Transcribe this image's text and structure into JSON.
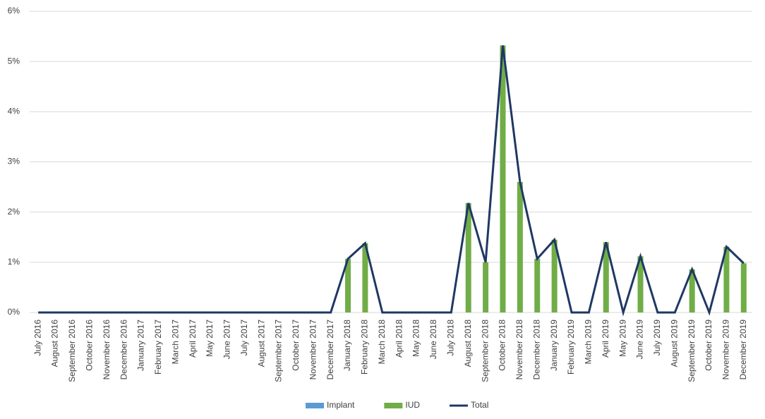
{
  "chart_data": {
    "type": "bar-line",
    "categories": [
      "July 2016",
      "August 2016",
      "September 2016",
      "October 2016",
      "November 2016",
      "December 2016",
      "January 2017",
      "February 2017",
      "March 2017",
      "April 2017",
      "May 2017",
      "June 2017",
      "July 2017",
      "August 2017",
      "September 2017",
      "October 2017",
      "November 2017",
      "December 2017",
      "January 2018",
      "February 2018",
      "March 2018",
      "April 2018",
      "May 2018",
      "June 2018",
      "July 2018",
      "August 2018",
      "September 2018",
      "October 2018",
      "November 2018",
      "December 2018",
      "January 2019",
      "February 2019",
      "March 2019",
      "April 2019",
      "May 2019",
      "June 2019",
      "July 2019",
      "August 2019",
      "September 2019",
      "October 2019",
      "November 2019",
      "December 2019"
    ],
    "series": [
      {
        "name": "Implant",
        "kind": "bar",
        "color": "#5b9bd5",
        "values": [
          0,
          0,
          0,
          0,
          0,
          0,
          0,
          0,
          0,
          0,
          0,
          0,
          0,
          0,
          0,
          0,
          0,
          0,
          0,
          0,
          0,
          0,
          0,
          0,
          0,
          0,
          0,
          0,
          0,
          0,
          0,
          0,
          0,
          0,
          0,
          0,
          0,
          0,
          0,
          0,
          0,
          0
        ]
      },
      {
        "name": "IUD",
        "kind": "bar",
        "color": "#70ad47",
        "values": [
          0,
          0,
          0,
          0,
          0,
          0,
          0,
          0,
          0,
          0,
          0,
          0,
          0,
          0,
          0,
          0,
          0,
          0,
          1.07,
          1.38,
          0,
          0,
          0,
          0,
          0,
          2.18,
          1.0,
          5.32,
          2.6,
          1.07,
          1.45,
          0,
          0,
          1.4,
          0,
          1.12,
          0,
          0,
          0.86,
          0,
          1.31,
          0.98
        ]
      },
      {
        "name": "Total",
        "kind": "line",
        "color": "#1f3864",
        "values": [
          0,
          0,
          0,
          0,
          0,
          0,
          0,
          0,
          0,
          0,
          0,
          0,
          0,
          0,
          0,
          0,
          0,
          0,
          1.07,
          1.38,
          0,
          0,
          0,
          0,
          0,
          2.18,
          1.0,
          5.32,
          2.6,
          1.07,
          1.45,
          0,
          0,
          1.4,
          0,
          1.12,
          0,
          0,
          0.86,
          0,
          1.31,
          0.98
        ]
      }
    ],
    "ylim": [
      0,
      6
    ],
    "yticks": [
      {
        "value": 0,
        "label": "0%"
      },
      {
        "value": 1,
        "label": "1%"
      },
      {
        "value": 2,
        "label": "2%"
      },
      {
        "value": 3,
        "label": "3%"
      },
      {
        "value": 4,
        "label": "4%"
      },
      {
        "value": 5,
        "label": "5%"
      },
      {
        "value": 6,
        "label": "6%"
      }
    ],
    "grid": true,
    "legend": "bottom"
  }
}
